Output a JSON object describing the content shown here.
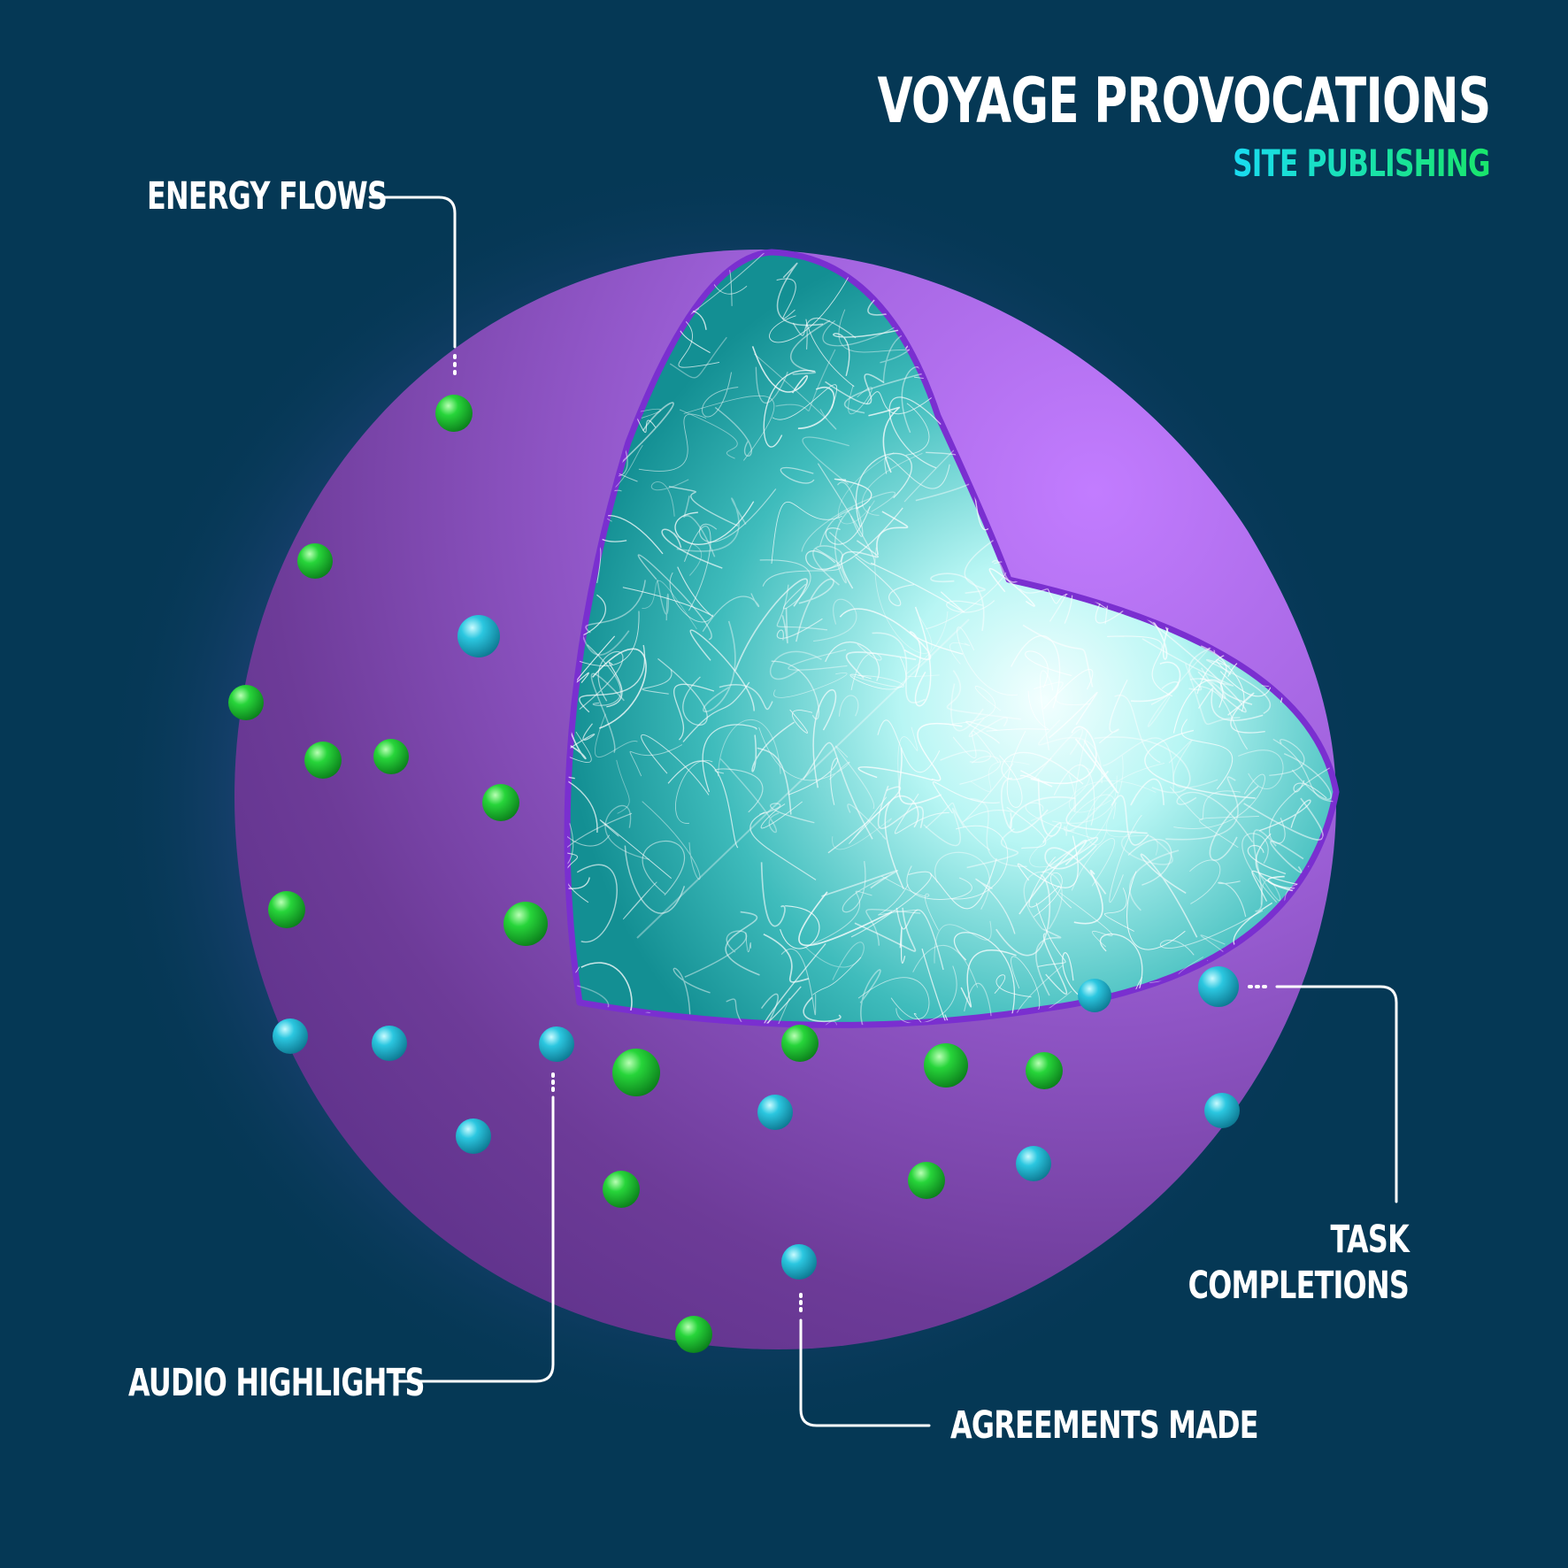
{
  "title": "VOYAGE PROVOCATIONS",
  "subtitle": "SITE PUBLISHING",
  "labels": {
    "energy_flows": "ENERGY FLOWS",
    "audio_highlights": "AUDIO HIGHLIGHTS",
    "agreements_made": "AGREEMENTS MADE",
    "task_line1": "TASK",
    "task_line2": "COMPLETIONS"
  },
  "colors": {
    "background": "#053855",
    "shell": "#8e4fc4",
    "shell_rim": "#7a2fd0",
    "core": "#1aa7a8",
    "core_glow": "#e6ffff",
    "green_particle": "#1ec12b",
    "blue_particle": "#22bcd6",
    "callout_line": "#ffffff"
  },
  "particle_legend": {
    "green": "energy-flow",
    "blue": "task-completion"
  }
}
